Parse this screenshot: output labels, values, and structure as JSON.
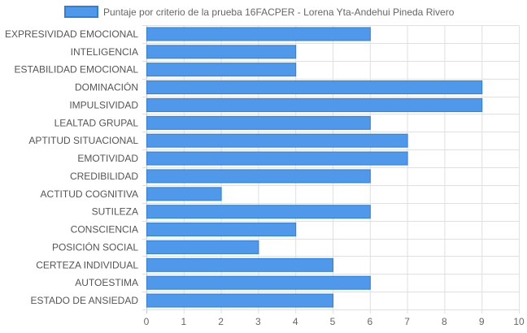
{
  "chart_data": {
    "type": "bar",
    "orientation": "horizontal",
    "series": [
      {
        "name": "Puntaje por criterio de la prueba 16FACPER - Lorena Yta-Andehui Pineda Rivero",
        "values": [
          6,
          4,
          4,
          9,
          9,
          6,
          7,
          7,
          6,
          2,
          6,
          4,
          3,
          5,
          6,
          5
        ]
      }
    ],
    "categories": [
      "EXPRESIVIDAD EMOCIONAL",
      "INTELIGENCIA",
      "ESTABILIDAD EMOCIONAL",
      "DOMINACIÓN",
      "IMPULSIVIDAD",
      "LEALTAD GRUPAL",
      "APTITUD SITUACIONAL",
      "EMOTIVIDAD",
      "CREDIBILIDAD",
      "ACTITUD COGNITIVA",
      "SUTILEZA",
      "CONSCIENCIA",
      "POSICIÓN SOCIAL",
      "CERTEZA INDIVIDUAL",
      "AUTOESTIMA",
      "ESTADO DE ANSIEDAD"
    ],
    "xlim": [
      0,
      10
    ],
    "xticks": [
      "0",
      "1",
      "2",
      "3",
      "4",
      "5",
      "6",
      "7",
      "8",
      "9",
      "10"
    ],
    "grid": true,
    "legend_position": "top",
    "colors": {
      "bar_fill": "#4f98ea",
      "bar_stroke": "#2f7fd8",
      "grid": "#e0e0e0",
      "axis": "#c8c8c8"
    }
  }
}
